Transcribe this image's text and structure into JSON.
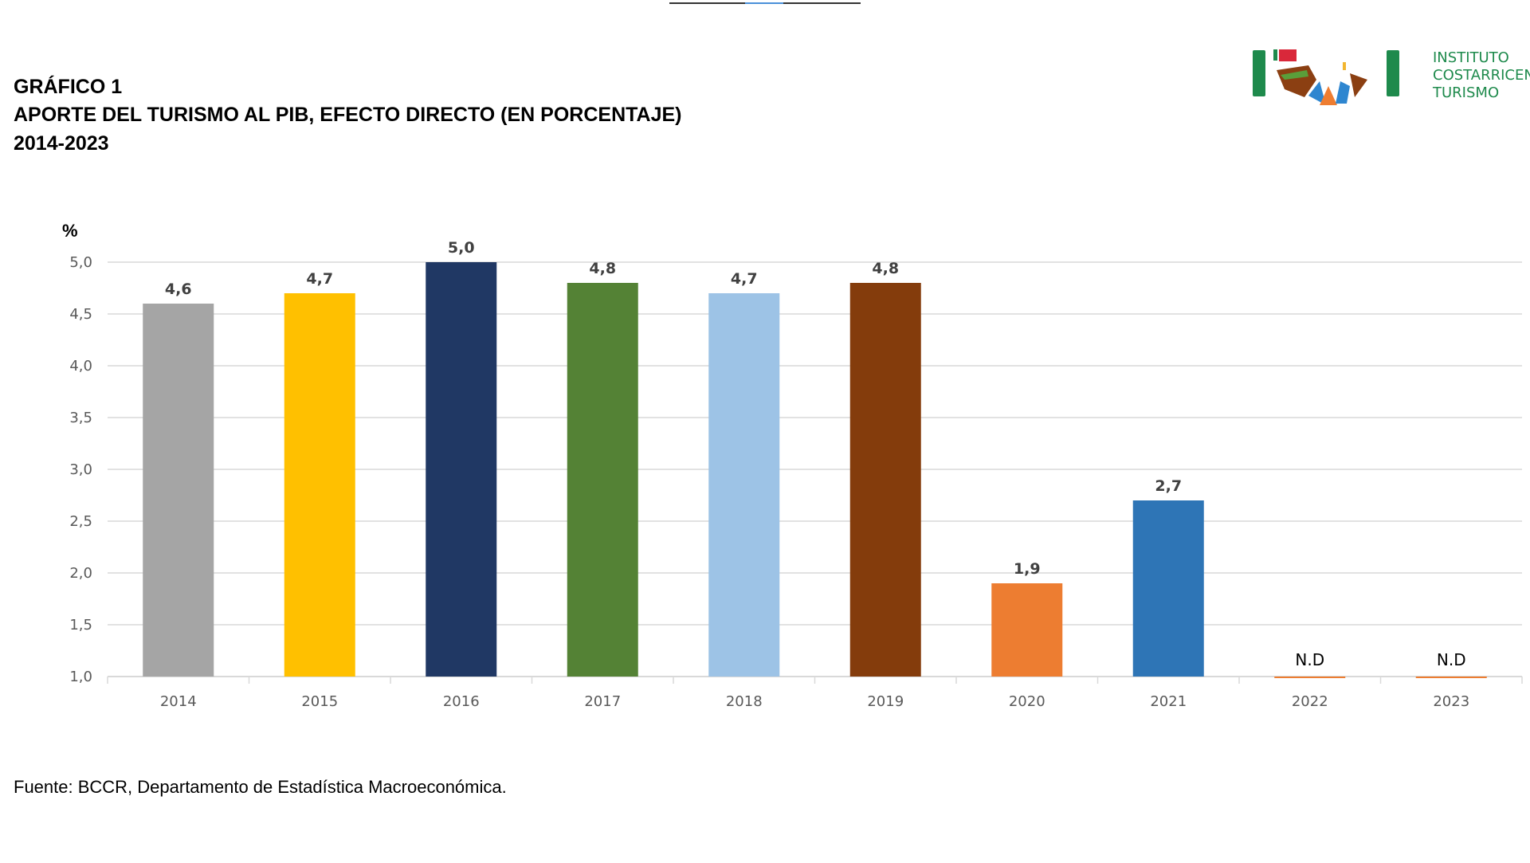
{
  "header": {
    "line1": "GRÁFICO 1",
    "line2": "APORTE DEL TURISMO AL PIB, EFECTO DIRECTO (EN PORCENTAJE)",
    "line3": "2014-2023"
  },
  "logo": {
    "text_lines": [
      "INSTITUTO",
      "COSTARRICEN",
      "TURISMO"
    ],
    "colors": {
      "green": "#1e8a4c",
      "red": "#d9283a",
      "brown": "#8b3f12",
      "orange": "#ee7d31",
      "blue": "#2e86d0",
      "yellow": "#f2b630"
    }
  },
  "chart_data": {
    "type": "bar",
    "ylabel": "%",
    "ylim": [
      1.0,
      5.0
    ],
    "yticks": [
      "1,0",
      "1,5",
      "2,0",
      "2,5",
      "3,0",
      "3,5",
      "4,0",
      "4,5",
      "5,0"
    ],
    "grid": true,
    "categories": [
      "2014",
      "2015",
      "2016",
      "2017",
      "2018",
      "2019",
      "2020",
      "2021",
      "2022",
      "2023"
    ],
    "values": [
      4.6,
      4.7,
      5.0,
      4.8,
      4.7,
      4.8,
      1.9,
      2.7,
      null,
      null
    ],
    "data_labels": [
      "4,6",
      "4,7",
      "5,0",
      "4,8",
      "4,7",
      "4,8",
      "1,9",
      "2,7",
      "N.D",
      "N.D"
    ],
    "colors": [
      "#A5A5A5",
      "#FFC000",
      "#203864",
      "#548235",
      "#9DC3E6",
      "#843C0C",
      "#ED7D31",
      "#2E75B6",
      "#ED7D31",
      "#ED7D31"
    ]
  },
  "footer": {
    "source": "Fuente: BCCR, Departamento de Estadística Macroeconómica."
  }
}
